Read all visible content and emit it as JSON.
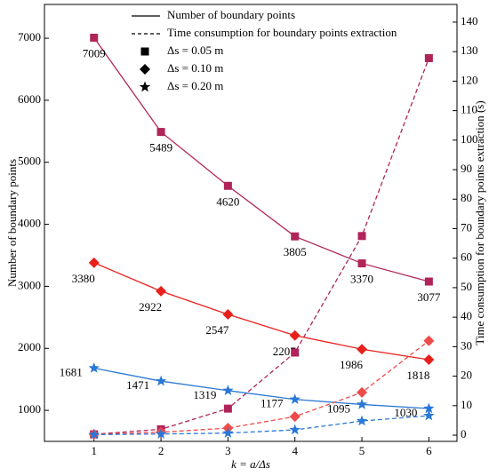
{
  "chart_data": {
    "type": "line",
    "x": [
      1,
      2,
      3,
      4,
      5,
      6
    ],
    "xlabel": "k = a/Δs",
    "ylabel": "Number of boundary points",
    "y2label": "Time consumption for boundary points extraction (s)",
    "xlim": [
      0.26,
      6.42
    ],
    "xticks": [
      1,
      2,
      3,
      4,
      5,
      6
    ],
    "ylim": [
      500,
      7545
    ],
    "yticks": [
      1000,
      2000,
      3000,
      4000,
      5000,
      6000,
      7000
    ],
    "y2lim": [
      -2.1,
      146
    ],
    "y2ticks": [
      0,
      10,
      20,
      30,
      40,
      50,
      60,
      70,
      80,
      90,
      100,
      110,
      120,
      130,
      140
    ],
    "series": [
      {
        "color": "#b0245a",
        "marker": "square",
        "dash": false,
        "values": [
          7009,
          5489,
          4620,
          3805,
          3370,
          3077
        ]
      },
      {
        "color": "#e8201c",
        "marker": "diamond",
        "dash": false,
        "values": [
          3380,
          2922,
          2547,
          2207,
          1986,
          1818
        ]
      },
      {
        "color": "#2a78d6",
        "marker": "star",
        "dash": false,
        "values": [
          1681,
          1471,
          1319,
          1177,
          1095,
          1030
        ]
      },
      {
        "color": "#b0245a",
        "marker": "square",
        "dash": true,
        "axis": "y2",
        "values": [
          0.3,
          2,
          9,
          28,
          67.5,
          127.8
        ]
      },
      {
        "color": "#f04a4a",
        "marker": "diamond",
        "dash": true,
        "axis": "y2",
        "values": [
          0.3,
          1,
          2.4,
          6.3,
          14.5,
          32
        ]
      },
      {
        "color": "#2a78d6",
        "marker": "star",
        "dash": true,
        "axis": "y2",
        "values": [
          0.2,
          0.4,
          0.7,
          1.8,
          4.8,
          6.6
        ]
      }
    ],
    "legend": [
      {
        "label": "Number of boundary points",
        "dash": false
      },
      {
        "label": "Time consumption for boundary points extraction",
        "dash": true
      },
      {
        "label": "Δs = 0.05 m",
        "marker": "square"
      },
      {
        "label": "Δs = 0.10 m",
        "marker": "diamond"
      },
      {
        "label": "Δs = 0.20 m",
        "marker": "star"
      }
    ]
  }
}
